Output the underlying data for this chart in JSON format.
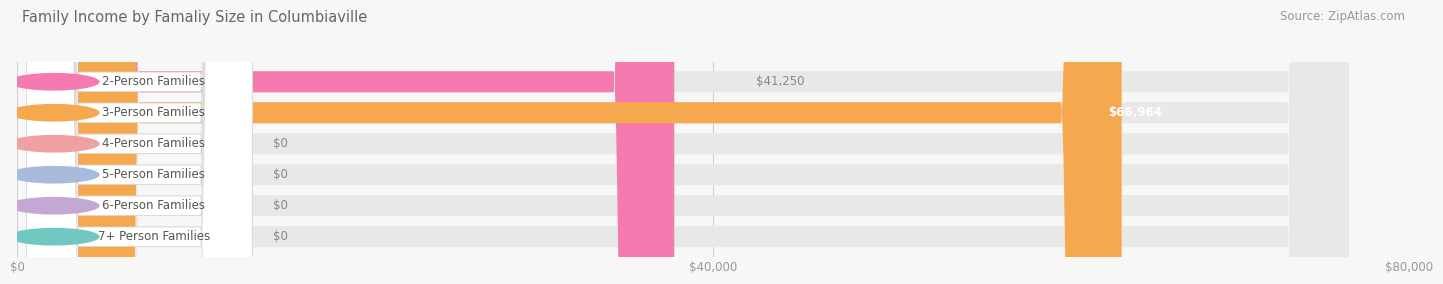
{
  "title": "Family Income by Famaliy Size in Columbiaville",
  "source": "Source: ZipAtlas.com",
  "categories": [
    "2-Person Families",
    "3-Person Families",
    "4-Person Families",
    "5-Person Families",
    "6-Person Families",
    "7+ Person Families"
  ],
  "values": [
    41250,
    66964,
    0,
    0,
    0,
    0
  ],
  "bar_colors": [
    "#f47ab0",
    "#f5a84e",
    "#f0a0a0",
    "#a8bbdd",
    "#c4a8d4",
    "#70c8c0"
  ],
  "value_labels": [
    "$41,250",
    "$66,964",
    "$0",
    "$0",
    "$0",
    "$0"
  ],
  "xlim": [
    0,
    80000
  ],
  "xticks": [
    0,
    40000,
    80000
  ],
  "xtick_labels": [
    "$0",
    "$40,000",
    "$80,000"
  ],
  "background_color": "#f7f7f7",
  "bar_background_color": "#e8e8e8",
  "title_fontsize": 10.5,
  "source_fontsize": 8.5,
  "label_fontsize": 8.5,
  "value_fontsize": 8.5
}
